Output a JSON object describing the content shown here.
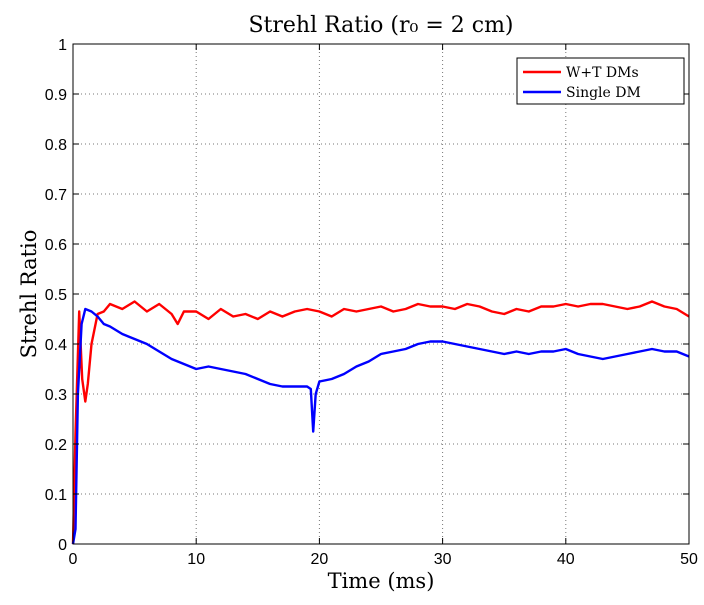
{
  "chart_data": {
    "type": "line",
    "title": "Strehl Ratio (r₀ = 2 cm)",
    "xlabel": "Time (ms)",
    "ylabel": "Strehl Ratio",
    "xlim": [
      0,
      50
    ],
    "ylim": [
      0,
      1
    ],
    "xticks": [
      0,
      10,
      20,
      30,
      40,
      50
    ],
    "yticks": [
      0,
      0.1,
      0.2,
      0.3,
      0.4,
      0.5,
      0.6,
      0.7,
      0.8,
      0.9,
      1
    ],
    "grid": true,
    "legend_position": "top-right",
    "series": [
      {
        "name": "W+T DMs",
        "color": "#ff0000",
        "x": [
          0,
          0.2,
          0.5,
          0.75,
          1,
          1.2,
          1.5,
          2,
          2.5,
          3,
          3.5,
          4,
          5,
          6,
          7,
          8,
          8.5,
          9,
          10,
          11,
          12,
          13,
          14,
          15,
          16,
          17,
          18,
          19,
          20,
          21,
          22,
          23,
          24,
          25,
          26,
          27,
          28,
          29,
          30,
          31,
          32,
          33,
          34,
          35,
          36,
          37,
          38,
          39,
          40,
          41,
          42,
          43,
          44,
          45,
          46,
          47,
          48,
          49,
          50
        ],
        "y": [
          0.0,
          0.22,
          0.465,
          0.33,
          0.285,
          0.32,
          0.4,
          0.46,
          0.465,
          0.48,
          0.475,
          0.47,
          0.485,
          0.465,
          0.48,
          0.46,
          0.44,
          0.465,
          0.465,
          0.45,
          0.47,
          0.455,
          0.46,
          0.45,
          0.465,
          0.455,
          0.465,
          0.47,
          0.465,
          0.455,
          0.47,
          0.465,
          0.47,
          0.475,
          0.465,
          0.47,
          0.48,
          0.475,
          0.475,
          0.47,
          0.48,
          0.475,
          0.465,
          0.46,
          0.47,
          0.465,
          0.475,
          0.475,
          0.48,
          0.475,
          0.48,
          0.48,
          0.475,
          0.47,
          0.475,
          0.485,
          0.475,
          0.47,
          0.455
        ]
      },
      {
        "name": "Single DM",
        "color": "#0000ff",
        "x": [
          0,
          0.2,
          0.4,
          0.7,
          1,
          1.5,
          2,
          2.5,
          3,
          4,
          5,
          6,
          7,
          8,
          9,
          10,
          11,
          12,
          13,
          14,
          15,
          16,
          17,
          18,
          19,
          19.3,
          19.5,
          19.7,
          20,
          21,
          22,
          23,
          24,
          25,
          26,
          27,
          28,
          29,
          30,
          31,
          32,
          33,
          34,
          35,
          36,
          37,
          38,
          39,
          40,
          41,
          42,
          43,
          44,
          45,
          46,
          47,
          48,
          49,
          50
        ],
        "y": [
          0.0,
          0.03,
          0.3,
          0.44,
          0.47,
          0.465,
          0.455,
          0.44,
          0.435,
          0.42,
          0.41,
          0.4,
          0.385,
          0.37,
          0.36,
          0.35,
          0.355,
          0.35,
          0.345,
          0.34,
          0.33,
          0.32,
          0.315,
          0.315,
          0.315,
          0.31,
          0.225,
          0.3,
          0.325,
          0.33,
          0.34,
          0.355,
          0.365,
          0.38,
          0.385,
          0.39,
          0.4,
          0.405,
          0.405,
          0.4,
          0.395,
          0.39,
          0.385,
          0.38,
          0.385,
          0.38,
          0.385,
          0.385,
          0.39,
          0.38,
          0.375,
          0.37,
          0.375,
          0.38,
          0.385,
          0.39,
          0.385,
          0.385,
          0.375
        ]
      }
    ]
  }
}
